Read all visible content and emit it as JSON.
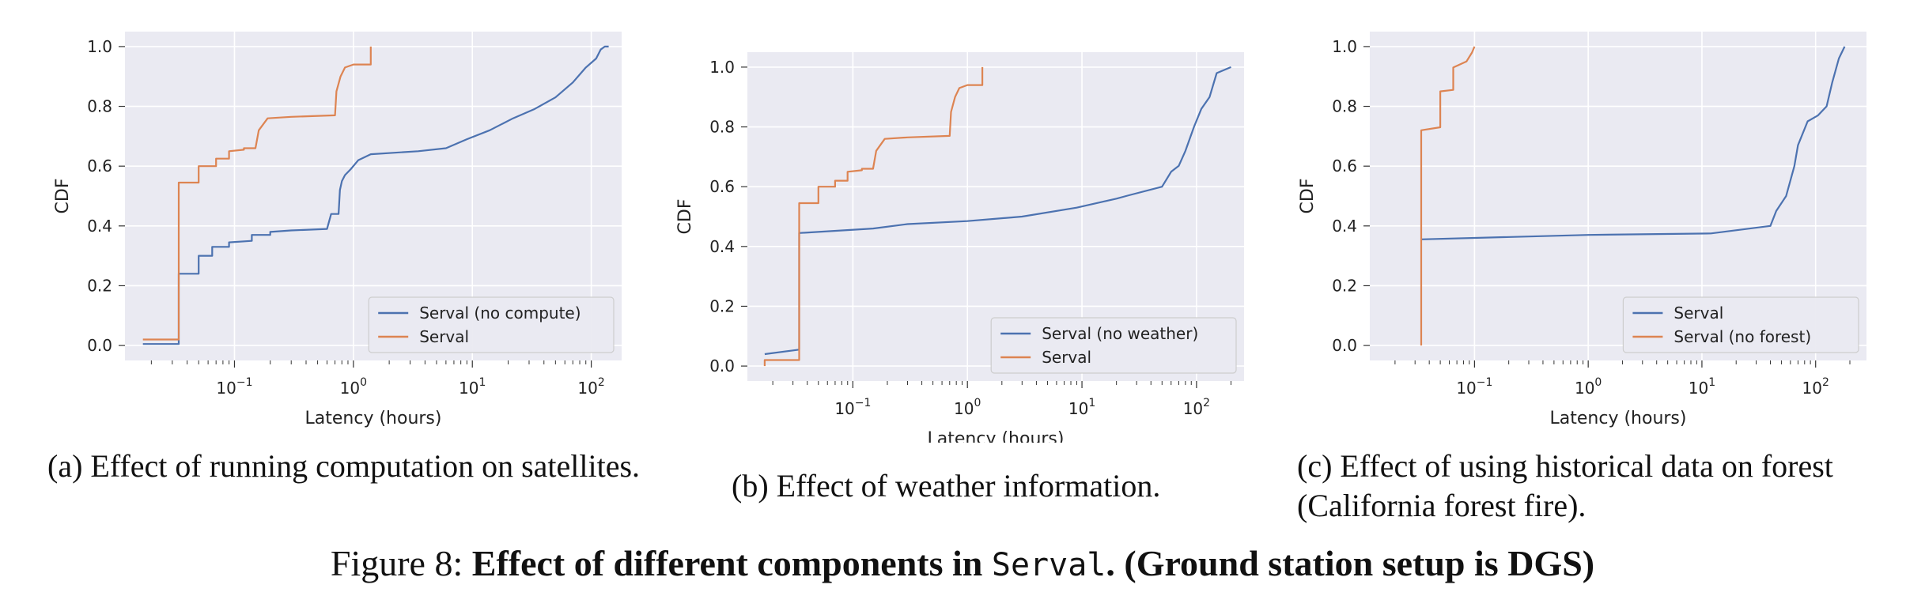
{
  "figure": {
    "label": "Figure 8:",
    "title_pre": "Effect of different components in",
    "title_code": "Serval",
    "title_post": ". (Ground station setup is DGS)"
  },
  "colors": {
    "blue": "#4c72b0",
    "orange": "#dd8452",
    "panel": "#eaeaf2",
    "grid": "#ffffff"
  },
  "chart_data": [
    {
      "type": "line",
      "subcaption": "(a) Effect of running computation on satellites.",
      "xlabel": "Latency (hours)",
      "ylabel": "CDF",
      "xscale": "log",
      "xlim": [
        0.012,
        180
      ],
      "ylim": [
        -0.05,
        1.05
      ],
      "xticks": [
        {
          "v": 0.1,
          "base": "10",
          "exp": "−1"
        },
        {
          "v": 1,
          "base": "10",
          "exp": "0"
        },
        {
          "v": 10,
          "base": "10",
          "exp": "1"
        },
        {
          "v": 100,
          "base": "10",
          "exp": "2"
        }
      ],
      "yticks": [
        "0.0",
        "0.2",
        "0.4",
        "0.6",
        "0.8",
        "1.0"
      ],
      "legend_position": "lower right",
      "series": [
        {
          "name": "Serval (no compute)",
          "color": "blue",
          "points": [
            [
              0.017,
              0.005
            ],
            [
              0.034,
              0.005
            ],
            [
              0.034,
              0.24
            ],
            [
              0.05,
              0.24
            ],
            [
              0.05,
              0.3
            ],
            [
              0.065,
              0.3
            ],
            [
              0.065,
              0.33
            ],
            [
              0.09,
              0.33
            ],
            [
              0.09,
              0.345
            ],
            [
              0.14,
              0.35
            ],
            [
              0.14,
              0.37
            ],
            [
              0.2,
              0.37
            ],
            [
              0.2,
              0.38
            ],
            [
              0.3,
              0.385
            ],
            [
              0.6,
              0.39
            ],
            [
              0.65,
              0.44
            ],
            [
              0.75,
              0.44
            ],
            [
              0.77,
              0.52
            ],
            [
              0.8,
              0.55
            ],
            [
              0.85,
              0.57
            ],
            [
              0.95,
              0.59
            ],
            [
              1.1,
              0.62
            ],
            [
              1.4,
              0.64
            ],
            [
              3.5,
              0.65
            ],
            [
              6,
              0.66
            ],
            [
              9,
              0.69
            ],
            [
              14,
              0.72
            ],
            [
              22,
              0.76
            ],
            [
              33,
              0.79
            ],
            [
              50,
              0.83
            ],
            [
              70,
              0.88
            ],
            [
              90,
              0.93
            ],
            [
              110,
              0.96
            ],
            [
              120,
              0.99
            ],
            [
              130,
              1.0
            ],
            [
              140,
              1.0
            ]
          ]
        },
        {
          "name": "Serval",
          "color": "orange",
          "points": [
            [
              0.017,
              0.02
            ],
            [
              0.034,
              0.02
            ],
            [
              0.034,
              0.545
            ],
            [
              0.05,
              0.545
            ],
            [
              0.05,
              0.6
            ],
            [
              0.07,
              0.6
            ],
            [
              0.07,
              0.625
            ],
            [
              0.09,
              0.625
            ],
            [
              0.09,
              0.65
            ],
            [
              0.12,
              0.655
            ],
            [
              0.12,
              0.66
            ],
            [
              0.15,
              0.66
            ],
            [
              0.16,
              0.72
            ],
            [
              0.19,
              0.76
            ],
            [
              0.3,
              0.765
            ],
            [
              0.7,
              0.77
            ],
            [
              0.72,
              0.85
            ],
            [
              0.78,
              0.9
            ],
            [
              0.85,
              0.93
            ],
            [
              1.0,
              0.94
            ],
            [
              1.4,
              0.94
            ],
            [
              1.4,
              1.0
            ]
          ]
        }
      ]
    },
    {
      "type": "line",
      "subcaption": "(b) Effect of weather information.",
      "xlabel": "Latency (hours)",
      "ylabel": "CDF",
      "xscale": "log",
      "xlim": [
        0.012,
        260
      ],
      "ylim": [
        -0.05,
        1.05
      ],
      "xticks": [
        {
          "v": 0.1,
          "base": "10",
          "exp": "−1"
        },
        {
          "v": 1,
          "base": "10",
          "exp": "0"
        },
        {
          "v": 10,
          "base": "10",
          "exp": "1"
        },
        {
          "v": 100,
          "base": "10",
          "exp": "2"
        }
      ],
      "yticks": [
        "0.0",
        "0.2",
        "0.4",
        "0.6",
        "0.8",
        "1.0"
      ],
      "legend_position": "lower right",
      "series": [
        {
          "name": "Serval (no weather)",
          "color": "blue",
          "points": [
            [
              0.017,
              0.04
            ],
            [
              0.034,
              0.055
            ],
            [
              0.034,
              0.445
            ],
            [
              0.15,
              0.46
            ],
            [
              0.3,
              0.475
            ],
            [
              1,
              0.485
            ],
            [
              3,
              0.5
            ],
            [
              9,
              0.53
            ],
            [
              20,
              0.56
            ],
            [
              25,
              0.57
            ],
            [
              50,
              0.6
            ],
            [
              60,
              0.65
            ],
            [
              70,
              0.67
            ],
            [
              80,
              0.72
            ],
            [
              95,
              0.8
            ],
            [
              110,
              0.86
            ],
            [
              130,
              0.9
            ],
            [
              150,
              0.98
            ],
            [
              200,
              1.0
            ]
          ]
        },
        {
          "name": "Serval",
          "color": "orange",
          "points": [
            [
              0.017,
              0.0
            ],
            [
              0.017,
              0.02
            ],
            [
              0.034,
              0.02
            ],
            [
              0.034,
              0.545
            ],
            [
              0.05,
              0.545
            ],
            [
              0.05,
              0.6
            ],
            [
              0.07,
              0.6
            ],
            [
              0.07,
              0.62
            ],
            [
              0.09,
              0.62
            ],
            [
              0.09,
              0.65
            ],
            [
              0.12,
              0.655
            ],
            [
              0.12,
              0.66
            ],
            [
              0.15,
              0.66
            ],
            [
              0.16,
              0.72
            ],
            [
              0.19,
              0.76
            ],
            [
              0.3,
              0.765
            ],
            [
              0.7,
              0.77
            ],
            [
              0.72,
              0.85
            ],
            [
              0.78,
              0.9
            ],
            [
              0.85,
              0.93
            ],
            [
              1.0,
              0.94
            ],
            [
              1.35,
              0.94
            ],
            [
              1.35,
              1.0
            ]
          ]
        }
      ]
    },
    {
      "type": "line",
      "subcaption": "(c) Effect of using historical data on forest (California forest fire).",
      "xlabel": "Latency (hours)",
      "ylabel": "CDF",
      "xscale": "log",
      "xlim": [
        0.012,
        280
      ],
      "ylim": [
        -0.05,
        1.05
      ],
      "xticks": [
        {
          "v": 0.1,
          "base": "10",
          "exp": "−1"
        },
        {
          "v": 1,
          "base": "10",
          "exp": "0"
        },
        {
          "v": 10,
          "base": "10",
          "exp": "1"
        },
        {
          "v": 100,
          "base": "10",
          "exp": "2"
        }
      ],
      "yticks": [
        "0.0",
        "0.2",
        "0.4",
        "0.6",
        "0.8",
        "1.0"
      ],
      "legend_position": "lower right",
      "series": [
        {
          "name": "Serval",
          "color": "blue",
          "points": [
            [
              0.034,
              0.355
            ],
            [
              1,
              0.37
            ],
            [
              12,
              0.375
            ],
            [
              40,
              0.4
            ],
            [
              45,
              0.45
            ],
            [
              55,
              0.5
            ],
            [
              65,
              0.6
            ],
            [
              70,
              0.67
            ],
            [
              85,
              0.75
            ],
            [
              105,
              0.77
            ],
            [
              125,
              0.8
            ],
            [
              140,
              0.88
            ],
            [
              160,
              0.96
            ],
            [
              180,
              1.0
            ]
          ]
        },
        {
          "name": "Serval (no forest)",
          "color": "orange",
          "points": [
            [
              0.034,
              0.0
            ],
            [
              0.034,
              0.72
            ],
            [
              0.05,
              0.73
            ],
            [
              0.05,
              0.85
            ],
            [
              0.065,
              0.855
            ],
            [
              0.065,
              0.93
            ],
            [
              0.085,
              0.95
            ],
            [
              0.095,
              0.98
            ],
            [
              0.1,
              1.0
            ]
          ]
        }
      ]
    }
  ]
}
